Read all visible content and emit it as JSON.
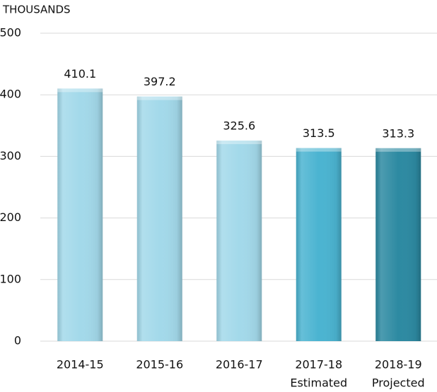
{
  "chart_data": {
    "type": "bar",
    "y_axis_label": "THOUSANDS",
    "categories": [
      "2014-15",
      "2015-16",
      "2016-17",
      "2017-18",
      "2018-19"
    ],
    "sublabels": [
      null,
      null,
      null,
      "Estimated",
      "Projected"
    ],
    "values": [
      410.1,
      397.2,
      325.6,
      313.5,
      313.3
    ],
    "colors": [
      "#a3d9ea",
      "#a3d9ea",
      "#a3d9ea",
      "#4bb4d1",
      "#2d8aa2"
    ],
    "ylim": [
      0,
      500
    ],
    "yticks": [
      0,
      100,
      200,
      300,
      400,
      500
    ],
    "grid": true
  }
}
